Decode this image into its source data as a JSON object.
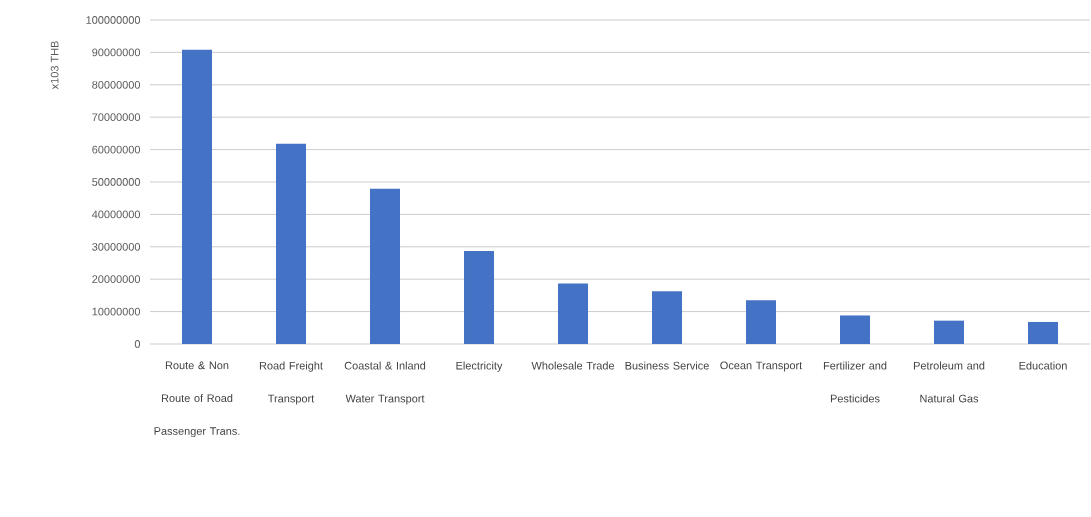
{
  "chart_data": {
    "type": "bar",
    "ylabel": "x103 THB",
    "categories": [
      "Route & Non Route of Road Passenger Trans.",
      "Road Freight Transport",
      "Coastal & Inland Water Transport",
      "Electricity",
      "Wholesale Trade",
      "Business Service",
      "Ocean Transport",
      "Fertilizer and Pesticides",
      "Petroleum and Natural Gas",
      "Education"
    ],
    "values": [
      90800000,
      61800000,
      47900000,
      28700000,
      18700000,
      16300000,
      13500000,
      8800000,
      7200000,
      6800000
    ],
    "color": "#4472c4",
    "ylim": [
      0,
      100000000
    ],
    "yticks": [
      0,
      10000000,
      20000000,
      30000000,
      40000000,
      50000000,
      60000000,
      70000000,
      80000000,
      90000000,
      100000000
    ],
    "grid": "y"
  }
}
